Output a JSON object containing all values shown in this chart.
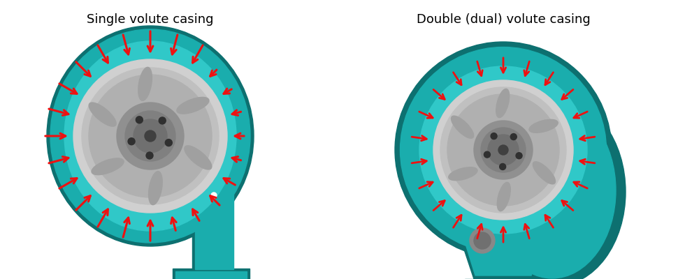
{
  "background_color": "#ffffff",
  "teal_body": "#1aadad",
  "teal_dark": "#0d7070",
  "teal_mid": "#159090",
  "teal_light": "#30c8c8",
  "red_color": "#ee1111",
  "gray_impeller": "#b8b8b8",
  "gray_hub": "#909090",
  "gray_dark": "#606060",
  "label1": "Single volute casing",
  "label2": "Double (dual) volute casing",
  "label_fontsize": 13,
  "fig_width": 9.8,
  "fig_height": 4.0
}
